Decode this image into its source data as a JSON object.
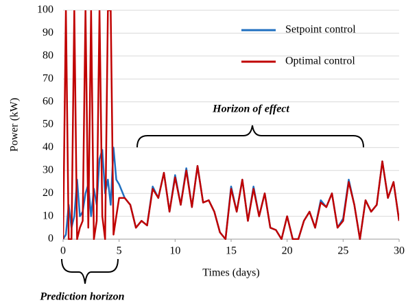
{
  "chart_data": {
    "type": "line",
    "xlabel": "Times (days)",
    "ylabel": "Power (kW)",
    "annotations": [
      "Horizon of effect",
      "Prediction horizon"
    ],
    "x": [
      0,
      0.25,
      0.5,
      0.75,
      1,
      1.25,
      1.5,
      1.75,
      2,
      2.25,
      2.5,
      2.75,
      3,
      3.25,
      3.5,
      3.75,
      4,
      4.25,
      4.5,
      4.75,
      5,
      5.5,
      6,
      6.5,
      7,
      7.5,
      8,
      8.5,
      9,
      9.5,
      10,
      10.5,
      11,
      11.5,
      12,
      12.5,
      13,
      13.5,
      14,
      14.5,
      15,
      15.5,
      16,
      16.5,
      17,
      17.5,
      18,
      18.5,
      19,
      19.5,
      20,
      20.5,
      21,
      21.5,
      22,
      22.5,
      23,
      23.5,
      24,
      24.5,
      25,
      25.5,
      26,
      26.5,
      27,
      27.5,
      28,
      28.5,
      29,
      29.5,
      30
    ],
    "series": [
      {
        "name": "Setpoint control",
        "color": "#1f6fc0",
        "values": [
          0,
          2,
          15,
          5,
          10,
          26,
          10,
          12,
          20,
          24,
          10,
          22,
          15,
          35,
          39,
          20,
          26,
          15,
          40,
          26,
          24,
          18,
          15,
          5,
          8,
          6,
          23,
          18,
          29,
          12,
          28,
          15,
          31,
          14,
          32,
          16,
          17,
          12,
          3,
          0,
          23,
          12,
          26,
          8,
          23,
          10,
          20,
          5,
          4,
          0,
          10,
          0,
          0,
          8,
          12,
          5,
          17,
          14,
          20,
          5,
          9,
          26,
          15,
          0,
          17,
          12,
          15,
          34,
          18,
          25,
          8
        ]
      },
      {
        "name": "Optimal control",
        "color": "#c00000",
        "values": [
          0,
          100,
          0,
          0,
          100,
          0,
          5,
          8,
          100,
          5,
          100,
          0,
          8,
          100,
          10,
          0,
          100,
          100,
          2,
          10,
          18,
          18,
          15,
          5,
          8,
          6,
          22,
          18,
          29,
          12,
          27,
          15,
          30,
          14,
          32,
          16,
          17,
          12,
          3,
          0,
          22,
          12,
          26,
          8,
          22,
          10,
          20,
          5,
          4,
          0,
          10,
          0,
          0,
          8,
          12,
          5,
          16,
          14,
          20,
          5,
          8,
          25,
          15,
          0,
          17,
          12,
          15,
          34,
          18,
          25,
          8
        ]
      }
    ],
    "xlim": [
      0,
      30
    ],
    "xticks": [
      0,
      5,
      10,
      15,
      20,
      25,
      30
    ],
    "ylim": [
      0,
      100
    ],
    "yticks": [
      0,
      10,
      20,
      30,
      40,
      50,
      60,
      70,
      80,
      90,
      100
    ],
    "grid": true
  }
}
